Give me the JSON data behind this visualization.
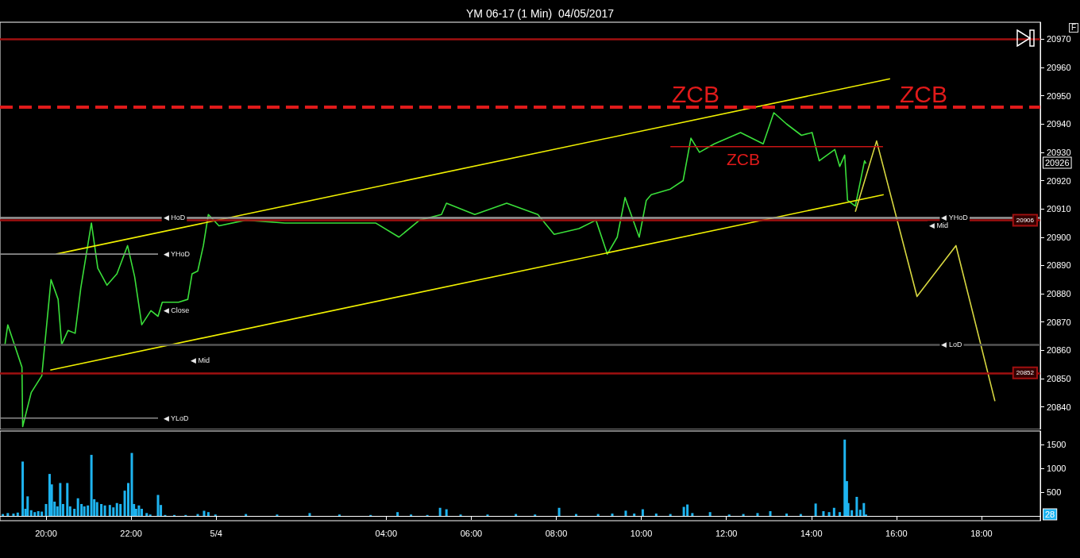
{
  "chart_data": [
    {
      "type": "line",
      "title": "YM 06-17 (1 Min)  04/05/2017",
      "xlim": [
        "2017-05-03T18:55",
        "2017-05-04T19:23"
      ],
      "ylim": [
        20832,
        20976
      ],
      "yticks": [
        20840,
        20850,
        20860,
        20870,
        20880,
        20890,
        20900,
        20910,
        20920,
        20930,
        20940,
        20950,
        20960,
        20970
      ],
      "tick_labels": "y",
      "grid": false,
      "marker": "none",
      "line_style": "solid",
      "series": [
        {
          "color": "#3adf3a",
          "x": [
            "2017-05-03T19:02",
            "2017-05-03T19:06",
            "2017-05-03T19:26",
            "2017-05-03T19:27",
            "2017-05-03T19:39",
            "2017-05-03T19:54",
            "2017-05-03T20:07",
            "2017-05-03T20:17",
            "2017-05-03T20:22",
            "2017-05-03T20:31",
            "2017-05-03T20:41",
            "2017-05-03T20:49",
            "2017-05-03T21:04",
            "2017-05-03T21:13",
            "2017-05-03T21:26",
            "2017-05-03T21:40",
            "2017-05-03T21:55",
            "2017-05-03T22:05",
            "2017-05-03T22:15",
            "2017-05-03T22:28",
            "2017-05-03T22:38",
            "2017-05-03T22:44",
            "2017-05-03T23:07",
            "2017-05-03T23:20",
            "2017-05-03T23:26",
            "2017-05-03T23:34",
            "2017-05-03T23:42",
            "2017-05-03T23:49",
            "2017-05-04T00:04",
            "2017-05-04T00:42",
            "2017-05-04T01:37",
            "2017-05-04T02:32",
            "2017-05-04T03:45",
            "2017-05-04T04:18",
            "2017-05-04T04:47",
            "2017-05-04T05:18",
            "2017-05-04T05:25",
            "2017-05-04T06:05",
            "2017-05-04T06:50",
            "2017-05-04T07:34",
            "2017-05-04T07:57",
            "2017-05-04T08:32",
            "2017-05-04T08:56",
            "2017-05-04T09:12",
            "2017-05-04T09:26",
            "2017-05-04T09:37",
            "2017-05-04T09:57",
            "2017-05-04T10:07",
            "2017-05-04T10:14",
            "2017-05-04T10:41",
            "2017-05-04T10:59",
            "2017-05-04T11:10",
            "2017-05-04T11:22",
            "2017-05-04T11:43",
            "2017-05-04T12:20",
            "2017-05-04T12:52",
            "2017-05-04T13:07",
            "2017-05-04T13:25",
            "2017-05-04T13:46",
            "2017-05-04T14:01",
            "2017-05-04T14:11",
            "2017-05-04T14:33",
            "2017-05-04T14:40",
            "2017-05-04T14:47",
            "2017-05-04T14:51",
            "2017-05-04T15:02",
            "2017-05-04T15:15",
            "2017-05-04T15:17"
          ],
          "values": [
            20862,
            20869,
            20854,
            20833,
            20845,
            20851,
            20885,
            20878,
            20862,
            20867,
            20866,
            20882,
            20905,
            20889,
            20883,
            20887,
            20897,
            20886,
            20869,
            20874,
            20872,
            20877,
            20877,
            20878,
            20887,
            20888,
            20897,
            20908,
            20904,
            20906,
            20905,
            20905,
            20905,
            20900,
            20906,
            20908,
            20912,
            20908,
            20912,
            20908,
            20901,
            20903,
            20906,
            20894,
            20900,
            20914,
            20900,
            20913,
            20915,
            20917,
            20920,
            20935,
            20930,
            20933,
            20937,
            20933,
            20944,
            20940,
            20936,
            20937,
            20927,
            20931,
            20925,
            20929,
            20913,
            20911,
            20927,
            20926
          ]
        },
        {
          "color": "#f0f000",
          "x": [
            "2017-05-03T20:14",
            "2017-05-04T15:51"
          ],
          "values": [
            20894,
            20956
          ]
        },
        {
          "color": "#f0f000",
          "x": [
            "2017-05-03T20:06",
            "2017-05-04T15:42"
          ],
          "values": [
            20853,
            20915
          ]
        },
        {
          "color": "#d8d840",
          "x": [
            "2017-05-04T15:02",
            "2017-05-04T15:32",
            "2017-05-04T16:29",
            "2017-05-04T17:24",
            "2017-05-04T18:19"
          ],
          "values": [
            20909,
            20934,
            20879,
            20897,
            20842
          ]
        },
        {
          "color": "#c81414",
          "x": [
            "2017-05-04T10:41",
            "2017-05-04T15:41"
          ],
          "values": [
            20932,
            20932
          ]
        },
        {
          "color": "#8c8c8c",
          "x": [
            "2017-05-03T18:55",
            "2017-05-03T22:38"
          ],
          "values": [
            20894,
            20894
          ]
        },
        {
          "color": "#8c8c8c",
          "x": [
            "2017-05-03T18:55",
            "2017-05-03T22:38"
          ],
          "values": [
            20836,
            20836
          ]
        }
      ],
      "ref_lines": [
        {
          "axis": "y",
          "value": 20970,
          "color": "#a01010"
        },
        {
          "axis": "y",
          "value": 20946,
          "color": "#e01a1a",
          "line_style": "dashed"
        },
        {
          "axis": "y",
          "value": 20907,
          "color": "#9a9a9a"
        },
        {
          "axis": "y",
          "value": 20906,
          "color": "#a01010",
          "label": "20906"
        },
        {
          "axis": "y",
          "value": 20862,
          "color": "#555555"
        },
        {
          "axis": "y",
          "value": 20852,
          "color": "#a01010",
          "label": "20852"
        }
      ],
      "annotations": [
        "ZCB",
        "ZCB",
        "ZCB",
        "◀ Mid",
        "◀ Mid",
        "20926",
        "F",
        {
          "text": "◀ HoD",
          "x": "2017-05-03T22:41",
          "y": 20907
        },
        {
          "text": "◀ YHoD",
          "x": "2017-05-03T22:41",
          "y": 20894
        },
        {
          "text": "◀ YLoD",
          "x": "2017-05-03T22:41",
          "y": 20836
        },
        {
          "text": "◀ Close",
          "x": "2017-05-03T22:41",
          "y": 20874
        },
        {
          "text": "◀ YHoD",
          "x": "2017-05-04T16:59",
          "y": 20907
        },
        {
          "text": "◀ LoD",
          "x": "2017-05-04T16:59",
          "y": 20862
        }
      ]
    },
    {
      "type": "bar",
      "xlim": [
        "2017-05-03T18:55",
        "2017-05-04T19:23"
      ],
      "xticks": [
        {
          "value": "2017-05-03T20:00",
          "label": "20:00"
        },
        {
          "value": "2017-05-03T22:00",
          "label": "22:00"
        },
        {
          "value": "2017-05-04T00:00",
          "label": "5/4"
        },
        {
          "value": "2017-05-04T04:00",
          "label": "04:00"
        },
        {
          "value": "2017-05-04T06:00",
          "label": "06:00"
        },
        {
          "value": "2017-05-04T08:00",
          "label": "08:00"
        },
        {
          "value": "2017-05-04T10:00",
          "label": "10:00"
        },
        {
          "value": "2017-05-04T12:00",
          "label": "12:00"
        },
        {
          "value": "2017-05-04T14:00",
          "label": "14:00"
        },
        {
          "value": "2017-05-04T16:00",
          "label": "16:00"
        },
        {
          "value": "2017-05-04T18:00",
          "label": "18:00"
        }
      ],
      "ylim": [
        -100,
        1780
      ],
      "yticks": [
        500,
        1000,
        1500
      ],
      "grid": false,
      "series": [
        {
          "color": "#1eb4f0",
          "x": [
            "2017-05-03T18:59",
            "2017-05-03T19:06",
            "2017-05-03T19:14",
            "2017-05-03T19:20",
            "2017-05-03T19:27",
            "2017-05-03T19:31",
            "2017-05-03T19:34",
            "2017-05-03T19:39",
            "2017-05-03T19:44",
            "2017-05-03T19:49",
            "2017-05-03T19:54",
            "2017-05-03T20:00",
            "2017-05-03T20:05",
            "2017-05-03T20:08",
            "2017-05-03T20:12",
            "2017-05-03T20:16",
            "2017-05-03T20:20",
            "2017-05-03T20:24",
            "2017-05-03T20:30",
            "2017-05-03T20:34",
            "2017-05-03T20:40",
            "2017-05-03T20:45",
            "2017-05-03T20:50",
            "2017-05-03T20:54",
            "2017-05-03T20:59",
            "2017-05-03T21:04",
            "2017-05-03T21:08",
            "2017-05-03T21:12",
            "2017-05-03T21:18",
            "2017-05-03T21:23",
            "2017-05-03T21:30",
            "2017-05-03T21:35",
            "2017-05-03T21:40",
            "2017-05-03T21:45",
            "2017-05-03T21:51",
            "2017-05-03T21:56",
            "2017-05-03T22:01",
            "2017-05-03T22:04",
            "2017-05-03T22:07",
            "2017-05-03T22:11",
            "2017-05-03T22:15",
            "2017-05-03T22:22",
            "2017-05-03T22:27",
            "2017-05-03T22:38",
            "2017-05-03T22:42",
            "2017-05-03T22:48",
            "2017-05-03T23:01",
            "2017-05-03T23:17",
            "2017-05-03T23:34",
            "2017-05-03T23:43",
            "2017-05-03T23:49",
            "2017-05-03T23:59",
            "2017-05-04T00:42",
            "2017-05-04T01:26",
            "2017-05-04T02:12",
            "2017-05-04T02:54",
            "2017-05-04T03:38",
            "2017-05-04T04:16",
            "2017-05-04T04:35",
            "2017-05-04T04:58",
            "2017-05-04T05:16",
            "2017-05-04T05:25",
            "2017-05-04T05:45",
            "2017-05-04T06:23",
            "2017-05-04T07:03",
            "2017-05-04T07:30",
            "2017-05-04T08:04",
            "2017-05-04T08:28",
            "2017-05-04T08:59",
            "2017-05-04T09:19",
            "2017-05-04T09:38",
            "2017-05-04T09:50",
            "2017-05-04T10:02",
            "2017-05-04T10:21",
            "2017-05-04T10:41",
            "2017-05-04T11:00",
            "2017-05-04T11:05",
            "2017-05-04T11:12",
            "2017-05-04T11:37",
            "2017-05-04T12:04",
            "2017-05-04T12:24",
            "2017-05-04T12:44",
            "2017-05-04T13:02",
            "2017-05-04T13:25",
            "2017-05-04T13:45",
            "2017-05-04T14:06",
            "2017-05-04T14:17",
            "2017-05-04T14:25",
            "2017-05-04T14:32",
            "2017-05-04T14:40",
            "2017-05-04T14:47",
            "2017-05-04T14:50",
            "2017-05-04T14:52",
            "2017-05-04T14:57",
            "2017-05-04T15:04",
            "2017-05-04T15:09",
            "2017-05-04T15:14",
            "2017-05-04T15:17"
          ],
          "values": [
            40,
            60,
            50,
            70,
            1140,
            150,
            410,
            120,
            80,
            100,
            90,
            250,
            880,
            660,
            300,
            200,
            690,
            250,
            690,
            200,
            150,
            370,
            250,
            200,
            220,
            1280,
            350,
            290,
            250,
            220,
            230,
            180,
            270,
            250,
            530,
            690,
            1320,
            250,
            150,
            220,
            150,
            60,
            30,
            440,
            230,
            20,
            20,
            20,
            40,
            110,
            80,
            30,
            40,
            30,
            60,
            30,
            20,
            80,
            30,
            20,
            170,
            140,
            30,
            30,
            40,
            30,
            170,
            40,
            40,
            50,
            110,
            50,
            140,
            50,
            40,
            190,
            240,
            60,
            80,
            30,
            40,
            60,
            100,
            50,
            40,
            260,
            100,
            80,
            170,
            80,
            1600,
            730,
            270,
            120,
            400,
            130,
            270,
            30
          ]
        }
      ],
      "annotations": [
        "28"
      ]
    }
  ]
}
